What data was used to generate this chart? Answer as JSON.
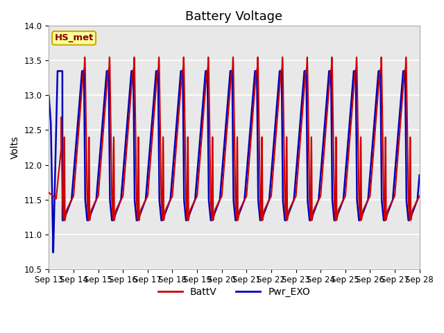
{
  "title": "Battery Voltage",
  "ylabel": "Volts",
  "ylim": [
    10.5,
    14.0
  ],
  "yticks": [
    10.5,
    11.0,
    11.5,
    12.0,
    12.5,
    13.0,
    13.5,
    14.0
  ],
  "plot_bg_color": "#e8e8e8",
  "grid_color": "#ffffff",
  "line_red": "#cc0000",
  "line_blue": "#0000bb",
  "legend_labels": [
    "BattV",
    "Pwr_EXO"
  ],
  "annotation_text": "HS_met",
  "annotation_bg": "#ffff99",
  "annotation_border": "#ccaa00",
  "x_labels": [
    "Sep 13",
    "Sep 14",
    "Sep 15",
    "Sep 16",
    "Sep 17",
    "Sep 18",
    "Sep 19",
    "Sep 20",
    "Sep 21",
    "Sep 22",
    "Sep 23",
    "Sep 24",
    "Sep 25",
    "Sep 26",
    "Sep 27",
    "Sep 28"
  ],
  "title_fontsize": 13,
  "label_fontsize": 10,
  "tick_fontsize": 8.5
}
